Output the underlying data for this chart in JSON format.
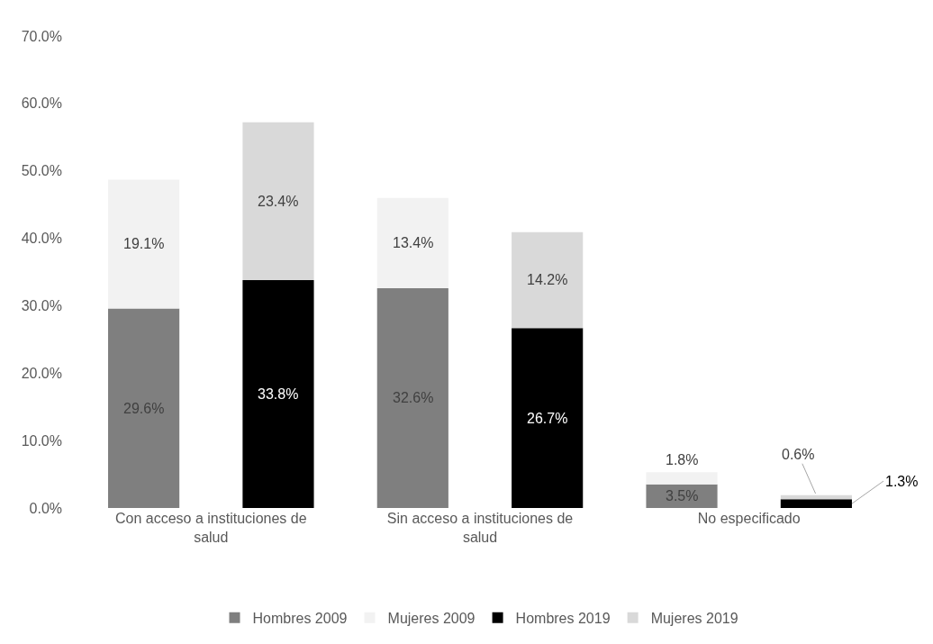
{
  "chart_data": {
    "type": "bar",
    "stacked": true,
    "categories": [
      "Con acceso a instituciones de salud",
      null,
      "Sin acceso a instituciones de salud",
      null,
      "No especificado",
      null
    ],
    "series": [
      {
        "name": "Hombres 2009",
        "color": "#7f7f7f",
        "values": [
          29.6,
          null,
          32.6,
          null,
          3.5,
          null
        ],
        "value_labels": [
          "29.6%",
          null,
          "32.6%",
          null,
          "3.5%",
          null
        ]
      },
      {
        "name": "Mujeres 2009",
        "color": "#f2f2f2",
        "values": [
          19.1,
          null,
          13.4,
          null,
          1.8,
          null
        ],
        "value_labels": [
          "19.1%",
          null,
          "13.4%",
          null,
          "1.8%",
          null
        ]
      },
      {
        "name": "Hombres 2019",
        "color": "#000000",
        "values": [
          null,
          33.8,
          null,
          26.7,
          null,
          1.3
        ],
        "value_labels": [
          null,
          "33.8%",
          null,
          "26.7%",
          null,
          "1.3%"
        ]
      },
      {
        "name": "Mujeres 2019",
        "color": "#d9d9d9",
        "values": [
          null,
          23.4,
          null,
          14.2,
          null,
          0.6
        ],
        "value_labels": [
          null,
          "23.4%",
          null,
          "14.2%",
          null,
          "0.6%"
        ]
      }
    ],
    "ylim": [
      0,
      70
    ],
    "yticks": [
      {
        "value": 0,
        "label": "0.0%"
      },
      {
        "value": 10,
        "label": "10.0%"
      },
      {
        "value": 20,
        "label": "20.0%"
      },
      {
        "value": 30,
        "label": "30.0%"
      },
      {
        "value": 40,
        "label": "40.0%"
      },
      {
        "value": 50,
        "label": "50.0%"
      },
      {
        "value": 60,
        "label": "60.0%"
      },
      {
        "value": 70,
        "label": "70.0%"
      }
    ],
    "legend": "bottom"
  }
}
